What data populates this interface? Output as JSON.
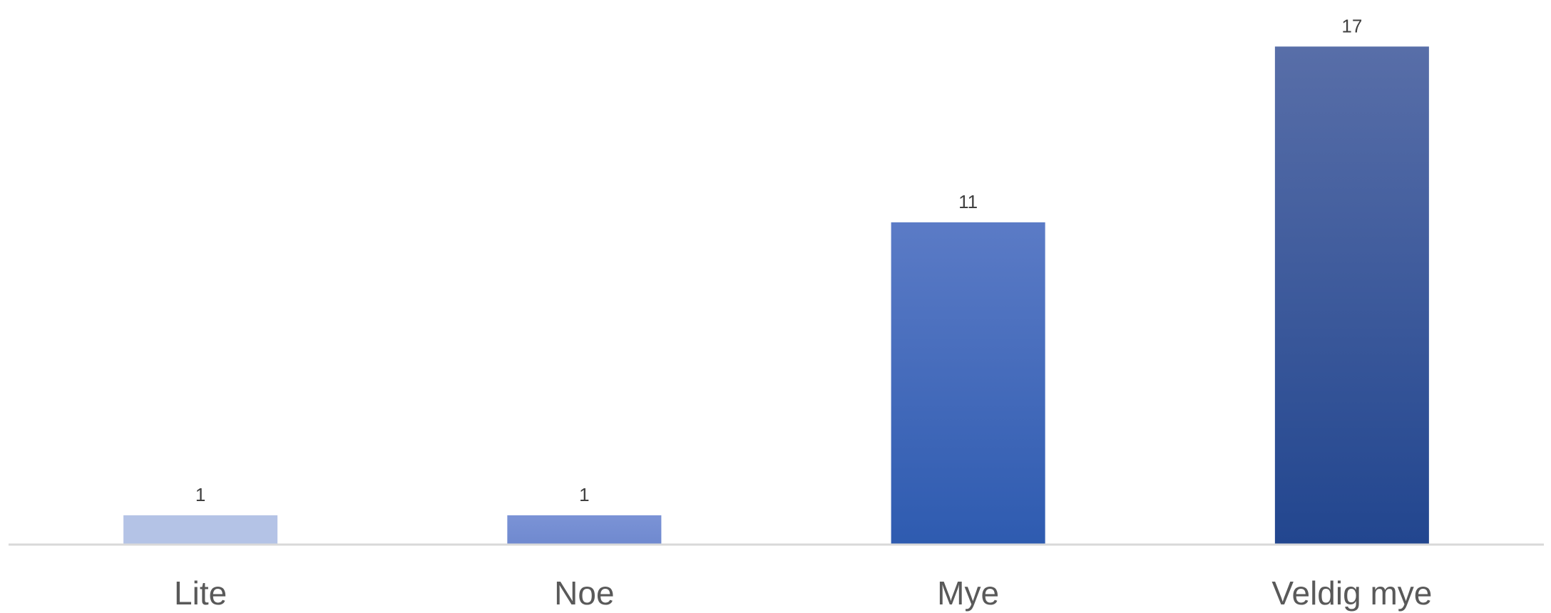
{
  "chart_data": {
    "type": "bar",
    "title": "",
    "xlabel": "",
    "ylabel": "",
    "categories": [
      "Lite",
      "Noe",
      "Mye",
      "Veldig mye"
    ],
    "values": [
      1,
      1,
      11,
      17
    ],
    "data_labels": [
      "1",
      "1",
      "11",
      "17"
    ],
    "ylim": [
      0,
      18
    ],
    "grid": false,
    "legend": "none",
    "colors": {
      "bar_tops": [
        "#b4c3e6",
        "#7b93d6",
        "#5b7bc6",
        "#586ea8"
      ],
      "bar_bottoms": [
        "#b4c3e6",
        "#6f89cf",
        "#2e5bb0",
        "#22468f"
      ],
      "axis_line": "#d9d9d9"
    }
  }
}
